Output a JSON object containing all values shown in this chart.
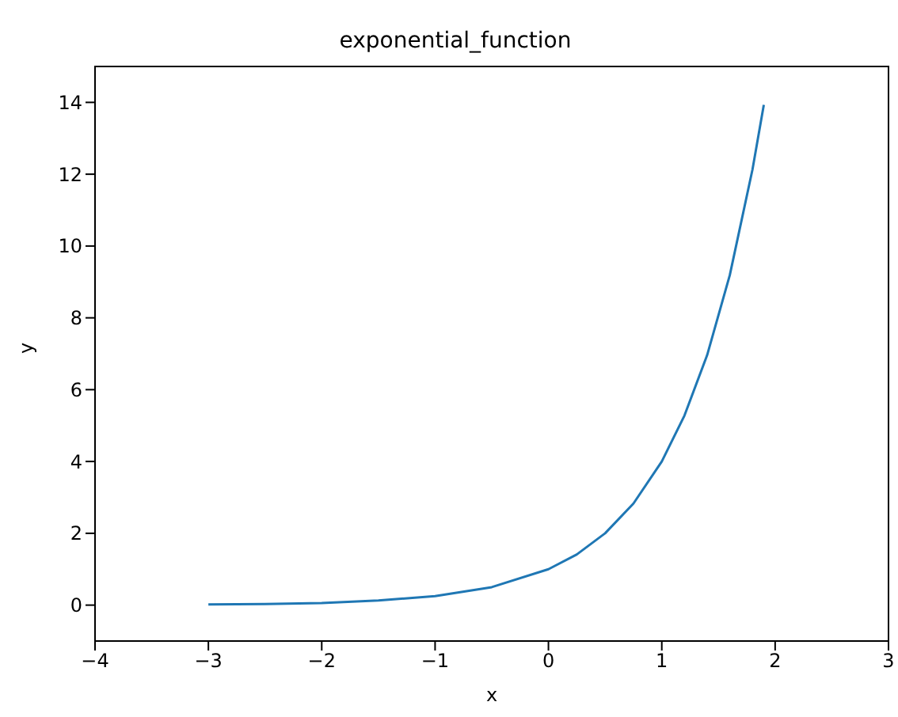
{
  "chart_data": {
    "type": "line",
    "title": "exponential_function",
    "xlabel": "x",
    "ylabel": "y",
    "x": [
      -3,
      -2.5,
      -2,
      -1.5,
      -1,
      -0.5,
      0,
      0.25,
      0.5,
      0.75,
      1,
      1.2,
      1.4,
      1.6,
      1.8,
      1.9
    ],
    "series": [
      {
        "color": "#1f77b4",
        "values": [
          0.02,
          0.03,
          0.06,
          0.13,
          0.25,
          0.5,
          1,
          1.41,
          2,
          2.83,
          4,
          5.28,
          6.96,
          9.19,
          12.13,
          13.93
        ]
      }
    ],
    "xlim": [
      -4,
      3
    ],
    "xticks": [
      -4,
      -3,
      -2,
      -1,
      0,
      1,
      2,
      3
    ],
    "ylim": [
      -1,
      15
    ],
    "yticks": [
      0,
      2,
      4,
      6,
      8,
      10,
      12,
      14
    ],
    "grid": false
  }
}
